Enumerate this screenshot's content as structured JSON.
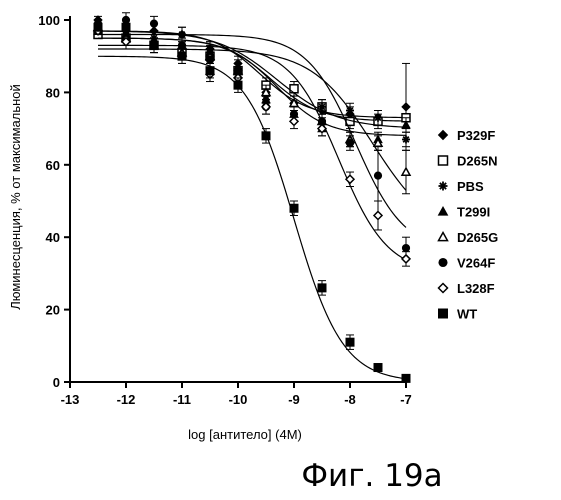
{
  "chart_data": {
    "type": "scatter",
    "xlabel": "log [антитело] (4M)",
    "ylabel": "Люминесценция, % от максимальной",
    "caption": "Фиг. 19а",
    "xlim": [
      -13,
      -7
    ],
    "ylim": [
      0,
      100
    ],
    "xticks": [
      -13,
      -12,
      -11,
      -10,
      -9,
      -8,
      -7
    ],
    "yticks": [
      0,
      20,
      40,
      60,
      80,
      100
    ],
    "legend_position": "right",
    "grid": false,
    "x": [
      -12.5,
      -12,
      -11.5,
      -11,
      -10.5,
      -10,
      -9.5,
      -9,
      -8.5,
      -8,
      -7.5,
      -7
    ],
    "series": [
      {
        "name": "P329F",
        "marker": "diamond-filled",
        "values": [
          100,
          97,
          97,
          96,
          92,
          88,
          80,
          77,
          75,
          74,
          73,
          76
        ],
        "err": [
          1,
          2,
          2,
          2,
          2,
          2,
          2,
          2,
          2,
          2,
          2,
          12
        ],
        "fit": {
          "top": 97,
          "bottom": 73,
          "logec50": -9.6,
          "hill": 1
        }
      },
      {
        "name": "D265N",
        "marker": "square-open",
        "values": [
          96,
          95,
          93,
          91,
          90,
          86,
          82,
          81,
          76,
          72,
          72,
          73
        ],
        "err": [
          1,
          2,
          2,
          2,
          2,
          2,
          2,
          2,
          2,
          2,
          2,
          3
        ],
        "fit": {
          "top": 95,
          "bottom": 72,
          "logec50": -9.4,
          "hill": 1
        }
      },
      {
        "name": "PBS",
        "marker": "asterisk",
        "values": [
          99,
          97,
          95,
          96,
          92,
          86,
          79,
          77,
          76,
          75,
          73,
          67
        ],
        "err": [
          1,
          2,
          2,
          2,
          2,
          2,
          2,
          2,
          2,
          2,
          2,
          2
        ],
        "fit": {
          "top": 97,
          "bottom": 70,
          "logec50": -9.3,
          "hill": 0.8
        }
      },
      {
        "name": "T299I",
        "marker": "triangle-filled",
        "values": [
          97,
          96,
          94,
          93,
          91,
          87,
          78,
          74,
          70,
          67,
          67,
          71
        ],
        "err": [
          1,
          2,
          2,
          2,
          2,
          2,
          2,
          2,
          2,
          2,
          2,
          2
        ],
        "fit": {
          "top": 95,
          "bottom": 68,
          "logec50": -9.3,
          "hill": 1
        }
      },
      {
        "name": "D265G",
        "marker": "triangle-open",
        "values": [
          98,
          95,
          93,
          91,
          90,
          86,
          80,
          77,
          72,
          67,
          66,
          58
        ],
        "err": [
          1,
          2,
          2,
          2,
          2,
          2,
          2,
          2,
          2,
          2,
          2,
          6
        ],
        "fit": {
          "top": 92,
          "bottom": 40,
          "logec50": -7.6,
          "hill": 0.8
        }
      },
      {
        "name": "V264F",
        "marker": "circle-filled",
        "values": [
          99,
          100,
          99,
          93,
          89,
          86,
          76,
          74,
          72,
          66,
          57,
          37
        ],
        "err": [
          1,
          2,
          2,
          2,
          2,
          2,
          2,
          2,
          2,
          2,
          7,
          3
        ],
        "fit": {
          "top": 96,
          "bottom": 36,
          "logec50": -7.9,
          "hill": 1
        }
      },
      {
        "name": "L328F",
        "marker": "diamond-open",
        "values": [
          97,
          94,
          93,
          90,
          85,
          84,
          76,
          72,
          70,
          56,
          46,
          34
        ],
        "err": [
          1,
          2,
          2,
          2,
          2,
          2,
          2,
          2,
          2,
          2,
          4,
          2
        ],
        "fit": {
          "top": 93,
          "bottom": 30,
          "logec50": -8.2,
          "hill": 1
        }
      },
      {
        "name": "WT",
        "marker": "square-filled",
        "values": [
          98,
          98,
          93,
          90,
          86,
          82,
          68,
          48,
          26,
          11,
          4,
          1
        ],
        "err": [
          1,
          2,
          2,
          2,
          2,
          2,
          2,
          2,
          2,
          2,
          1,
          1
        ],
        "fit": {
          "top": 90,
          "bottom": 0,
          "logec50": -9.0,
          "hill": 1.0
        }
      }
    ]
  }
}
